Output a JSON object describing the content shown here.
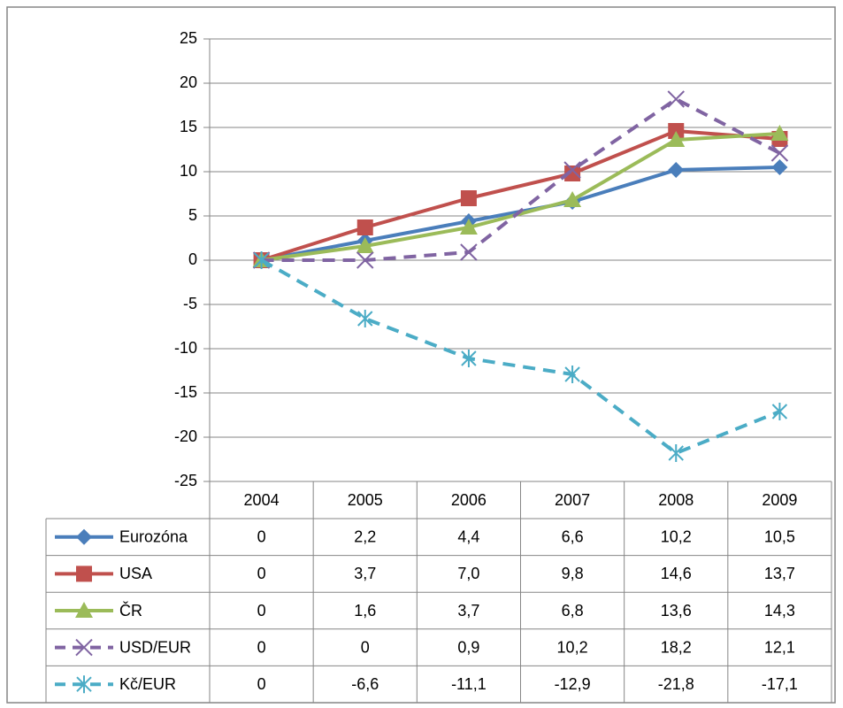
{
  "chart_data": {
    "type": "line",
    "categories": [
      "2004",
      "2005",
      "2006",
      "2007",
      "2008",
      "2009"
    ],
    "ylim": [
      -25,
      25
    ],
    "yticks": [
      -25,
      -20,
      -15,
      -10,
      -5,
      0,
      5,
      10,
      15,
      20,
      25
    ],
    "grid": true,
    "series": [
      {
        "name": "Eurozóna",
        "color": "#4a7ebb",
        "marker": "diamond",
        "dashed": false,
        "values": [
          0,
          2.2,
          4.4,
          6.6,
          10.2,
          10.5
        ],
        "value_labels": [
          "0",
          "2,2",
          "4,4",
          "6,6",
          "10,2",
          "10,5"
        ]
      },
      {
        "name": "USA",
        "color": "#c0504d",
        "marker": "square",
        "dashed": false,
        "values": [
          0,
          3.7,
          7.0,
          9.8,
          14.6,
          13.7
        ],
        "value_labels": [
          "0",
          "3,7",
          "7,0",
          "9,8",
          "14,6",
          "13,7"
        ]
      },
      {
        "name": "ČR",
        "color": "#9bbb59",
        "marker": "triangle",
        "dashed": false,
        "values": [
          0,
          1.6,
          3.7,
          6.8,
          13.6,
          14.3
        ],
        "value_labels": [
          "0",
          "1,6",
          "3,7",
          "6,8",
          "13,6",
          "14,3"
        ]
      },
      {
        "name": "USD/EUR",
        "color": "#8064a2",
        "marker": "x",
        "dashed": true,
        "values": [
          0,
          0,
          0.9,
          10.2,
          18.2,
          12.1
        ],
        "value_labels": [
          "0",
          "0",
          "0,9",
          "10,2",
          "18,2",
          "12,1"
        ]
      },
      {
        "name": "Kč/EUR",
        "color": "#4bacc6",
        "marker": "star",
        "dashed": true,
        "values": [
          0,
          -6.6,
          -11.1,
          -12.9,
          -21.8,
          -17.1
        ],
        "value_labels": [
          "0",
          "-6,6",
          "-11,1",
          "-12,9",
          "-21,8",
          "-17,1"
        ]
      }
    ]
  }
}
